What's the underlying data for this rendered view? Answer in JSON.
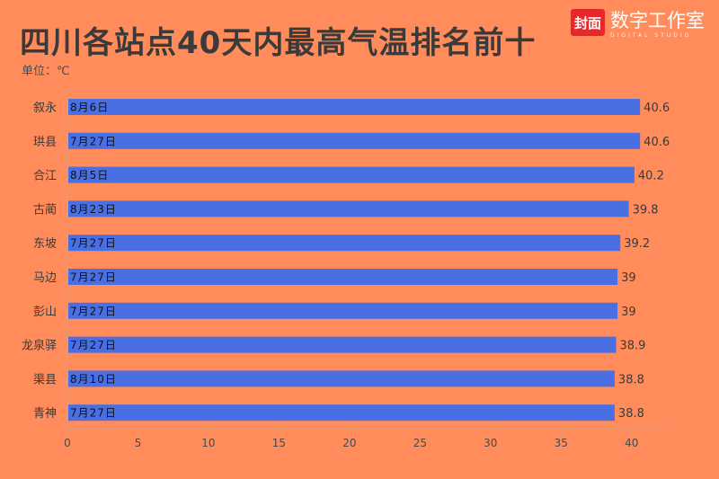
{
  "header": {
    "title": "四川各站点40天内最高气温排名前十",
    "unit": "单位：℃"
  },
  "logo": {
    "mark": "封面",
    "name": "数字工作室",
    "sub": "DIGITAL STUDIO"
  },
  "colors": {
    "background": "#FF8C5A",
    "bar": "#4A6FE3",
    "text": "#3A3A3A"
  },
  "chart_data": {
    "type": "bar",
    "orientation": "horizontal",
    "categories": [
      "叙永",
      "珙县",
      "合江",
      "古蔺",
      "东坡",
      "马边",
      "彭山",
      "龙泉驿",
      "渠县",
      "青神"
    ],
    "values": [
      40.6,
      40.6,
      40.2,
      39.8,
      39.2,
      39,
      39,
      38.9,
      38.8,
      38.8
    ],
    "value_labels": [
      "40.6",
      "40.6",
      "40.2",
      "39.8",
      "39.2",
      "39",
      "39",
      "38.9",
      "38.8",
      "38.8"
    ],
    "dates": [
      "8月6日",
      "7月27日",
      "8月5日",
      "8月23日",
      "7月27日",
      "7月27日",
      "7月27日",
      "7月27日",
      "8月10日",
      "7月27日"
    ],
    "title": "四川各站点40天内最高气温排名前十",
    "xlabel": "",
    "ylabel": "",
    "xlim": [
      0,
      42.5
    ],
    "xticks": [
      "0",
      "5",
      "10",
      "15",
      "20",
      "25",
      "30",
      "35",
      "40"
    ],
    "xtick_values": [
      0,
      5,
      10,
      15,
      20,
      25,
      30,
      35,
      40
    ],
    "grid": false,
    "legend": "none"
  }
}
